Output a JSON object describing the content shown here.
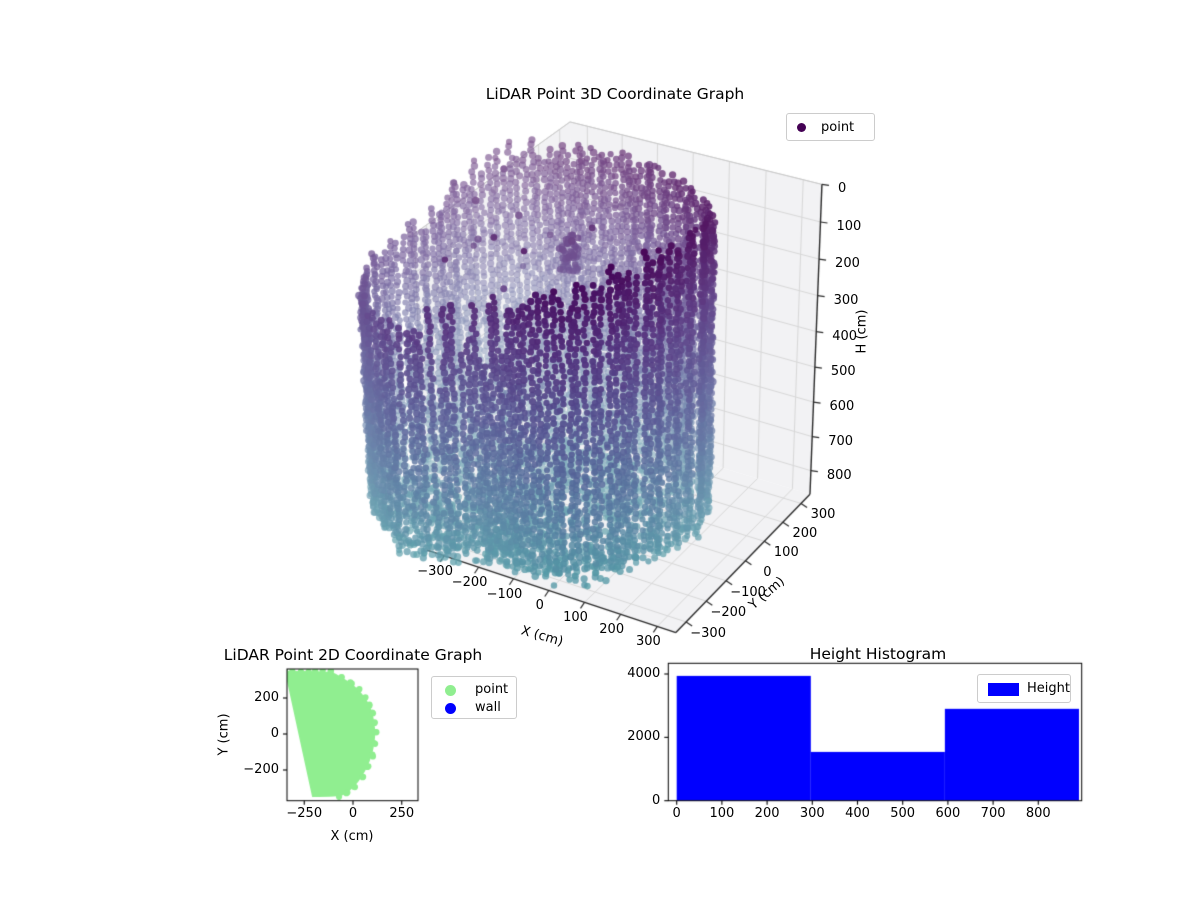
{
  "figure_background": "#ffffff",
  "chart_data": [
    {
      "type": "scatter3d",
      "title": "LiDAR Point 3D Coordinate Graph",
      "xlabel": "X (cm)",
      "ylabel": "Y (cm)",
      "zlabel": "H (cm)",
      "legend": {
        "label": "point",
        "marker_color": "#440154"
      },
      "xlim": [
        -350,
        350
      ],
      "ylim": [
        -350,
        350
      ],
      "hlim": [
        0,
        870
      ],
      "h_axis_inverted": true,
      "xticks": [
        -300,
        -200,
        -100,
        0,
        100,
        200,
        300
      ],
      "xtick_labels": [
        "−300",
        "−200",
        "−100",
        "0",
        "100",
        "200",
        "300"
      ],
      "yticks": [
        -300,
        -200,
        -100,
        0,
        100,
        200,
        300
      ],
      "ytick_labels": [
        "−300",
        "−200",
        "−100",
        "0",
        "100",
        "200",
        "300"
      ],
      "hticks": [
        0,
        100,
        200,
        300,
        400,
        500,
        600,
        700,
        800
      ],
      "htick_labels": [
        "0",
        "100",
        "200",
        "300",
        "400",
        "500",
        "600",
        "700",
        "800"
      ],
      "pane_color": "#f2f2f4",
      "grid_color": "#d8d8d8",
      "axis_color": "#2a2a2a",
      "colormap": "viridis",
      "colormap_t_max": 0.55,
      "grid_on": true,
      "cloud_model": {
        "description": "cylindrical room scan: wall columns colored by height, purple(top)->blue/teal(bottom)",
        "center_xy": [
          -230,
          -50
        ],
        "radius_base": 365,
        "radius_wobble": [
          [
            2.0,
            40,
            1.2
          ],
          [
            3.4,
            28,
            0.5
          ],
          [
            6.1,
            15,
            0.0
          ]
        ],
        "rim_top_h_by_30deg": [
          10,
          0,
          15,
          30,
          50,
          140,
          230,
          255,
          250,
          170,
          130,
          40
        ],
        "ragged_sector_deg": [
          215,
          290
        ],
        "wall_bottom_h": 820,
        "floor_h_range": [
          820,
          880
        ],
        "columns": 132,
        "vertical_step_cm": 15,
        "floor_point_count": 1500,
        "interior_noise_count": 260,
        "stray_top_count": 14,
        "cluster": {
          "x": -180,
          "y": 60,
          "h_range": [
            140,
            240
          ],
          "count": 45
        },
        "point_radius_px": 3.3,
        "seed": 1234
      }
    },
    {
      "type": "scatter2d_filled",
      "title": "LiDAR Point 2D Coordinate Graph",
      "xlabel": "X (cm)",
      "ylabel": "Y (cm)",
      "xlim": [
        -350,
        350
      ],
      "ylim": [
        -360,
        360
      ],
      "xticks": [
        -250,
        0,
        250
      ],
      "xtick_labels": [
        "−250",
        "0",
        "250"
      ],
      "yticks": [
        200,
        0,
        -200
      ],
      "ytick_labels": [
        "200",
        "0",
        "−200"
      ],
      "legend": [
        {
          "label": "point",
          "color": "#90ee90"
        },
        {
          "label": "wall",
          "color": "#0000ff"
        }
      ],
      "blob_color": "#90ee90",
      "blob_polygon": [
        [
          -350,
          350
        ],
        [
          -113,
          350
        ],
        [
          -60,
          318
        ],
        [
          -10,
          283
        ],
        [
          30,
          245
        ],
        [
          62,
          203
        ],
        [
          85,
          160
        ],
        [
          100,
          115
        ],
        [
          110,
          65
        ],
        [
          115,
          5
        ],
        [
          110,
          -55
        ],
        [
          97,
          -120
        ],
        [
          75,
          -180
        ],
        [
          48,
          -235
        ],
        [
          10,
          -290
        ],
        [
          -30,
          -328
        ],
        [
          -69,
          -350
        ],
        [
          -350,
          -350
        ]
      ]
    },
    {
      "type": "histogram",
      "title": "Height Histogram",
      "legend_label": "Height",
      "bar_color": "#0000ff",
      "bin_edges": [
        0,
        296.7,
        593.3,
        890
      ],
      "counts": [
        3940,
        1540,
        2900
      ],
      "xlim": [
        -18,
        896
      ],
      "ylim": [
        0,
        4337
      ],
      "xticks": [
        0,
        100,
        200,
        300,
        400,
        500,
        600,
        700,
        800
      ],
      "xtick_labels": [
        "0",
        "100",
        "200",
        "300",
        "400",
        "500",
        "600",
        "700",
        "800"
      ],
      "yticks": [
        0,
        2000,
        4000
      ],
      "ytick_labels": [
        "0",
        "2000",
        "4000"
      ]
    }
  ]
}
